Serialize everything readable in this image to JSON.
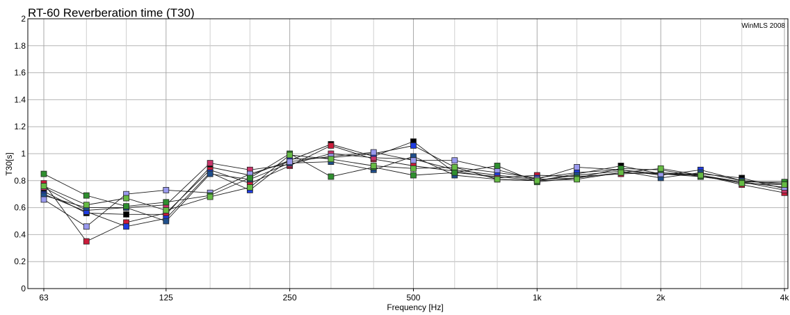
{
  "chart_data": {
    "type": "line",
    "title": "RT-60 Reverberation time (T30)",
    "watermark": "WinMLS 2008 l",
    "xlabel": "Frequency [Hz]",
    "ylabel": "T30[s]",
    "x_scale": "log",
    "ylim": [
      0,
      2
    ],
    "y_ticks": [
      0,
      0.2,
      0.4,
      0.6,
      0.8,
      1,
      1.2,
      1.4,
      1.6,
      1.8,
      2
    ],
    "x_ticks": [
      {
        "value": 63,
        "label": "63"
      },
      {
        "value": 125,
        "label": "125"
      },
      {
        "value": 250,
        "label": "250"
      },
      {
        "value": 500,
        "label": "500"
      },
      {
        "value": 1000,
        "label": "1k"
      },
      {
        "value": 2000,
        "label": "2k"
      },
      {
        "value": 4000,
        "label": "4k"
      }
    ],
    "grid": true,
    "x": [
      63,
      80,
      100,
      125,
      160,
      200,
      250,
      315,
      400,
      500,
      630,
      800,
      1000,
      1250,
      1600,
      2000,
      2500,
      3150,
      4000
    ],
    "series": [
      {
        "color": "#000000",
        "values": [
          0.72,
          0.56,
          0.55,
          0.55,
          0.9,
          0.84,
          0.95,
          1.07,
          0.98,
          1.09,
          0.86,
          0.83,
          0.8,
          0.85,
          0.91,
          0.85,
          0.85,
          0.82,
          0.74
        ]
      },
      {
        "color": "#cc1b3a",
        "values": [
          0.78,
          0.35,
          0.49,
          0.56,
          0.88,
          0.78,
          0.91,
          1.06,
          0.96,
          0.91,
          0.87,
          0.82,
          0.84,
          0.83,
          0.85,
          0.86,
          0.84,
          0.77,
          0.71
        ]
      },
      {
        "color": "#c8356b",
        "values": [
          0.75,
          0.58,
          0.6,
          0.62,
          0.93,
          0.88,
          0.92,
          1.0,
          0.97,
          0.96,
          0.88,
          0.84,
          0.81,
          0.82,
          0.86,
          0.85,
          0.83,
          0.79,
          0.73
        ]
      },
      {
        "color": "#1f3ce0",
        "values": [
          0.7,
          0.57,
          0.46,
          0.52,
          0.86,
          0.73,
          0.96,
          0.97,
          1.0,
          1.06,
          0.9,
          0.86,
          0.82,
          0.86,
          0.88,
          0.84,
          0.88,
          0.8,
          0.77
        ]
      },
      {
        "color": "#1f4f8c",
        "values": [
          0.69,
          0.6,
          0.6,
          0.5,
          0.85,
          0.81,
          0.93,
          0.94,
          0.88,
          0.98,
          0.84,
          0.81,
          0.8,
          0.84,
          0.87,
          0.82,
          0.86,
          0.8,
          0.78
        ]
      },
      {
        "color": "#9999ee",
        "values": [
          0.66,
          0.46,
          0.7,
          0.73,
          0.71,
          0.85,
          0.94,
          0.98,
          1.01,
          0.95,
          0.95,
          0.88,
          0.81,
          0.9,
          0.88,
          0.85,
          0.84,
          0.79,
          0.75
        ]
      },
      {
        "color": "#2f8f2f",
        "values": [
          0.85,
          0.69,
          0.61,
          0.64,
          0.69,
          0.82,
          1.0,
          0.83,
          0.9,
          0.84,
          0.86,
          0.91,
          0.79,
          0.82,
          0.89,
          0.88,
          0.83,
          0.79,
          0.79
        ]
      },
      {
        "color": "#66bb44",
        "values": [
          0.76,
          0.62,
          0.67,
          0.58,
          0.68,
          0.75,
          0.99,
          0.96,
          0.91,
          0.89,
          0.9,
          0.81,
          0.8,
          0.81,
          0.86,
          0.89,
          0.84,
          0.78,
          0.77
        ]
      }
    ]
  }
}
